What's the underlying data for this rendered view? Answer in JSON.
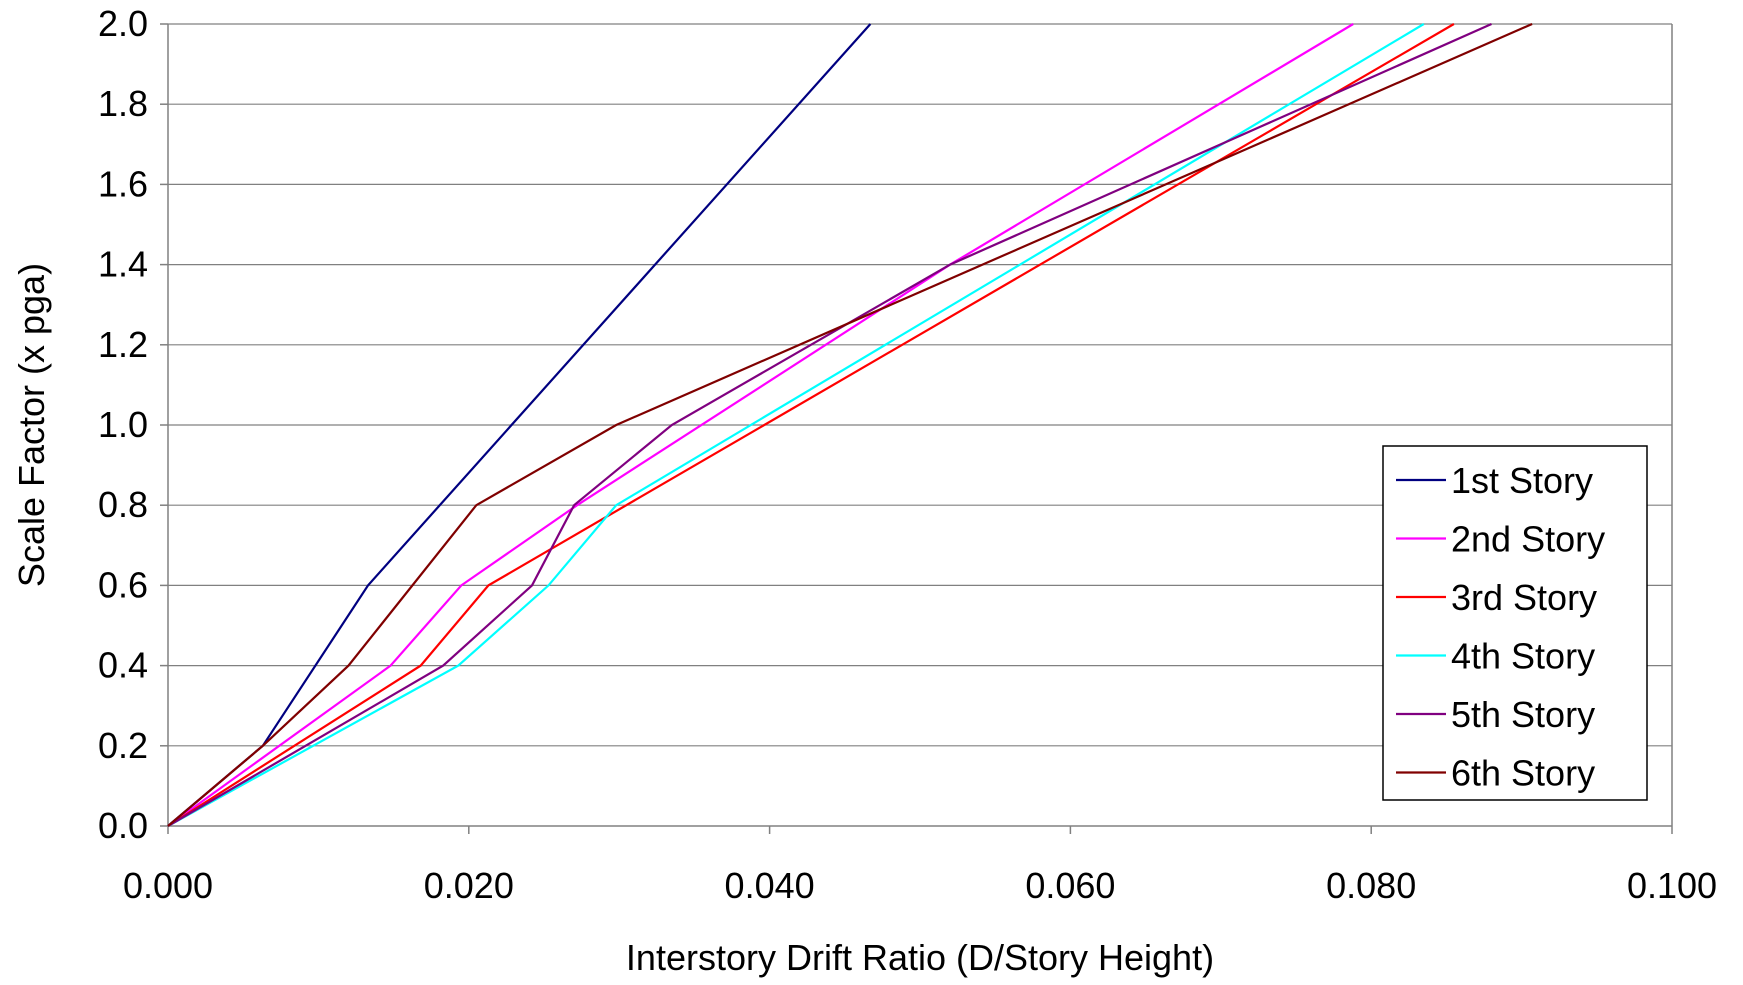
{
  "chart_data": {
    "type": "line",
    "title": "",
    "xlabel": "Interstory Drift Ratio (D/Story Height)",
    "ylabel": "Scale Factor (x pga)",
    "xlim": [
      0.0,
      0.1
    ],
    "ylim": [
      0.0,
      2.0
    ],
    "x_ticks": [
      "0.000",
      "0.020",
      "0.040",
      "0.060",
      "0.080",
      "0.100"
    ],
    "y_ticks": [
      "0.0",
      "0.2",
      "0.4",
      "0.6",
      "0.8",
      "1.0",
      "1.2",
      "1.4",
      "1.6",
      "1.8",
      "2.0"
    ],
    "grid": "horizontal",
    "legend_position": "right",
    "series": [
      {
        "name": "1st Story",
        "color": "#000080",
        "points": [
          [
            0,
            0
          ],
          [
            0.0063,
            0.2
          ],
          [
            0.0133,
            0.6
          ],
          [
            0.0467,
            2.0
          ]
        ]
      },
      {
        "name": "2nd Story",
        "color": "#FF00FF",
        "points": [
          [
            0,
            0
          ],
          [
            0.0148,
            0.4
          ],
          [
            0.0195,
            0.6
          ],
          [
            0.0272,
            0.8
          ],
          [
            0.052,
            1.4
          ],
          [
            0.0788,
            2.0
          ]
        ]
      },
      {
        "name": "3rd Story",
        "color": "#FF0000",
        "points": [
          [
            0,
            0
          ],
          [
            0.0168,
            0.4
          ],
          [
            0.0213,
            0.6
          ],
          [
            0.0855,
            2.0
          ]
        ]
      },
      {
        "name": "4th Story",
        "color": "#00FFFF",
        "points": [
          [
            0,
            0
          ],
          [
            0.0193,
            0.4
          ],
          [
            0.0253,
            0.6
          ],
          [
            0.0298,
            0.8
          ],
          [
            0.0835,
            2.0
          ]
        ]
      },
      {
        "name": "5th Story",
        "color": "#800080",
        "points": [
          [
            0,
            0
          ],
          [
            0.0183,
            0.4
          ],
          [
            0.0242,
            0.6
          ],
          [
            0.027,
            0.8
          ],
          [
            0.0335,
            1.0
          ],
          [
            0.052,
            1.4
          ],
          [
            0.088,
            2.0
          ]
        ]
      },
      {
        "name": "6th Story",
        "color": "#800000",
        "points": [
          [
            0,
            0
          ],
          [
            0.0063,
            0.2
          ],
          [
            0.012,
            0.4
          ],
          [
            0.0205,
            0.8
          ],
          [
            0.0298,
            1.0
          ],
          [
            0.0907,
            2.0
          ]
        ]
      }
    ]
  }
}
